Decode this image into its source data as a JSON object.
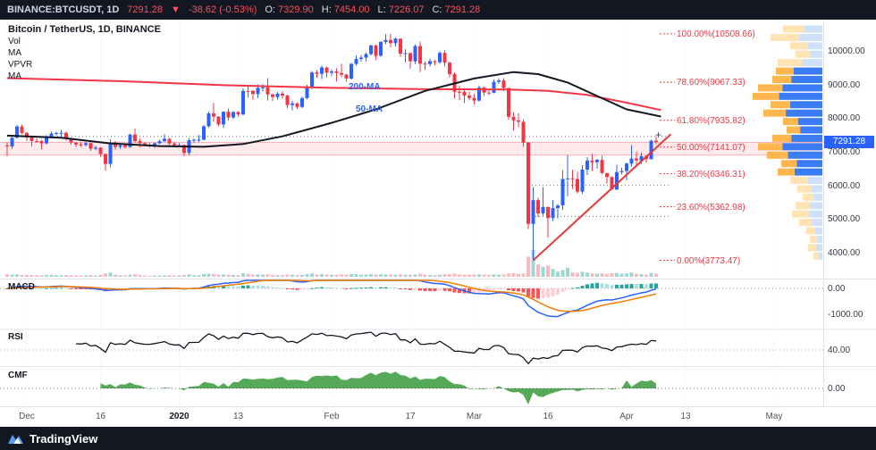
{
  "top_bar": {
    "symbol": "BINANCE:BTCUSDT, 1D",
    "last": "7291.28",
    "direction_icon": "▼",
    "change": "-38.62 (-0.53%)",
    "o_label": "O:",
    "o": "7329.90",
    "h_label": "H:",
    "h": "7454.00",
    "l_label": "L:",
    "l": "7226.07",
    "c_label": "C:",
    "c": "7291.28"
  },
  "legend": {
    "title": "Bitcoin / TetherUS, 1D, BINANCE",
    "items": [
      "Vol",
      "MA",
      "VPVR",
      "MA"
    ]
  },
  "overlays": {
    "ma200_label": "200-MA",
    "ma50_label": "50-MA"
  },
  "panes": {
    "macd": "MACD",
    "rsi": "RSI",
    "cmf": "CMF"
  },
  "price_axis": {
    "labels": [
      "10000.00",
      "9000.00",
      "8000.00",
      "7000.00",
      "6000.00",
      "5000.00",
      "4000.00"
    ],
    "badge": "7291.28"
  },
  "sub_axis": [
    {
      "pane": "macd",
      "label": "0.00"
    },
    {
      "pane": "macd",
      "label": "-1000.00"
    },
    {
      "pane": "rsi",
      "label": "40.00"
    },
    {
      "pane": "cmf",
      "label": "0.00"
    }
  ],
  "time_axis": [
    {
      "label": "Dec",
      "date": "2019-12-01"
    },
    {
      "label": "16",
      "date": "2019-12-16"
    },
    {
      "label": "2020",
      "date": "2020-01-01",
      "year": true
    },
    {
      "label": "13",
      "date": "2020-01-13"
    },
    {
      "label": "Feb",
      "date": "2020-02-01"
    },
    {
      "label": "17",
      "date": "2020-02-17"
    },
    {
      "label": "Mar",
      "date": "2020-03-01"
    },
    {
      "label": "16",
      "date": "2020-03-16"
    },
    {
      "label": "Apr",
      "date": "2020-04-01"
    },
    {
      "label": "13",
      "date": "2020-04-13"
    },
    {
      "label": "May",
      "date": "2020-05-01"
    }
  ],
  "branding": {
    "logo_text": "TradingView"
  },
  "colors": {
    "up": "#2962ff",
    "down": "#f23645",
    "vol_up": "rgba(38,166,154,0.45)",
    "vol_down": "rgba(242,54,69,0.35)",
    "ma200": "#f23645",
    "ma50": "#131722",
    "trend": "#e53935",
    "fib": "#f23645",
    "band_fill": "rgba(242,54,69,0.11)",
    "band_edge": "rgba(242,54,69,0.35)",
    "macd_line": "#2962ff",
    "macd_signal": "#f57c00",
    "hist": [
      "#26A69A",
      "#B2DFDB",
      "#FFCDD2",
      "#FF5252"
    ],
    "rsi": "#131722",
    "cmf_fill": "#43a047",
    "grid": "rgba(42,46,57,0.10)",
    "separator": "#e0e3eb",
    "badge_bg": "#2962ff"
  },
  "chart_data": {
    "type": "candlestick+indicators",
    "symbol": "BINANCE:BTCUSDT",
    "interval": "1D",
    "start": "2019-11-27",
    "ylim": [
      3300,
      10900
    ],
    "ohlcv_format": [
      "open",
      "high",
      "low",
      "close",
      "volume_thousand"
    ],
    "ohlcv": [
      [
        7190,
        7290,
        6870,
        7160,
        45
      ],
      [
        7160,
        7440,
        7090,
        7420,
        38
      ],
      [
        7420,
        7800,
        7390,
        7750,
        42
      ],
      [
        7750,
        7810,
        7520,
        7560,
        35
      ],
      [
        7560,
        7590,
        7320,
        7424,
        32
      ],
      [
        7424,
        7445,
        7156,
        7321,
        32
      ],
      [
        7321,
        7400,
        7271,
        7320,
        28
      ],
      [
        7320,
        7350,
        7077,
        7252,
        30
      ],
      [
        7252,
        7490,
        7220,
        7448,
        35
      ],
      [
        7448,
        7600,
        7400,
        7546,
        38
      ],
      [
        7546,
        7600,
        7480,
        7556,
        30
      ],
      [
        7556,
        7650,
        7430,
        7564,
        28
      ],
      [
        7564,
        7600,
        7330,
        7400,
        30
      ],
      [
        7400,
        7420,
        7210,
        7278,
        26
      ],
      [
        7278,
        7290,
        7150,
        7217,
        24
      ],
      [
        7217,
        7290,
        7151,
        7204,
        22
      ],
      [
        7204,
        7300,
        7160,
        7257,
        24
      ],
      [
        7257,
        7270,
        7030,
        7091,
        30
      ],
      [
        7091,
        7180,
        7050,
        7124,
        22
      ],
      [
        7124,
        7130,
        6850,
        6932,
        35
      ],
      [
        6932,
        6950,
        6435,
        6640,
        60
      ],
      [
        6640,
        7370,
        6535,
        7276,
        75
      ],
      [
        7276,
        7320,
        7060,
        7146,
        40
      ],
      [
        7146,
        7230,
        7080,
        7194,
        28
      ],
      [
        7194,
        7230,
        7100,
        7141,
        26
      ],
      [
        7141,
        7545,
        7120,
        7511,
        38
      ],
      [
        7511,
        7690,
        7270,
        7317,
        45
      ],
      [
        7317,
        7390,
        7130,
        7255,
        30
      ],
      [
        7255,
        7290,
        7160,
        7204,
        22
      ],
      [
        7204,
        7270,
        7130,
        7202,
        18
      ],
      [
        7202,
        7280,
        7120,
        7254,
        20
      ],
      [
        7254,
        7360,
        7230,
        7316,
        22
      ],
      [
        7316,
        7520,
        7290,
        7388,
        26
      ],
      [
        7388,
        7410,
        7200,
        7247,
        28
      ],
      [
        7247,
        7290,
        7140,
        7196,
        24
      ],
      [
        7196,
        7260,
        7160,
        7200,
        25
      ],
      [
        7200,
        7215,
        6870,
        6965,
        35
      ],
      [
        6965,
        7410,
        6890,
        7344,
        45
      ],
      [
        7344,
        7400,
        7270,
        7354,
        28
      ],
      [
        7354,
        7500,
        7290,
        7358,
        30
      ],
      [
        7358,
        7790,
        7340,
        7758,
        48
      ],
      [
        7758,
        8190,
        7720,
        8145,
        55
      ],
      [
        8145,
        8450,
        7900,
        8047,
        50
      ],
      [
        8047,
        8060,
        7760,
        7813,
        38
      ],
      [
        7813,
        8200,
        7710,
        8190,
        42
      ],
      [
        8190,
        8290,
        7930,
        8020,
        36
      ],
      [
        8020,
        8200,
        7970,
        8184,
        34
      ],
      [
        8184,
        8200,
        8050,
        8110,
        30
      ],
      [
        8110,
        8890,
        8090,
        8810,
        65
      ],
      [
        8810,
        8980,
        8610,
        8807,
        52
      ],
      [
        8807,
        8850,
        8550,
        8717,
        40
      ],
      [
        8717,
        9000,
        8600,
        8900,
        45
      ],
      [
        8900,
        9010,
        8800,
        8915,
        38
      ],
      [
        8915,
        9190,
        8520,
        8706,
        48
      ],
      [
        8706,
        8740,
        8510,
        8628,
        36
      ],
      [
        8628,
        8780,
        8550,
        8727,
        32
      ],
      [
        8727,
        8800,
        8580,
        8672,
        30
      ],
      [
        8672,
        8700,
        8290,
        8388,
        42
      ],
      [
        8388,
        8520,
        8230,
        8440,
        35
      ],
      [
        8440,
        8460,
        8270,
        8334,
        28
      ],
      [
        8334,
        8640,
        8300,
        8596,
        34
      ],
      [
        8596,
        8990,
        8560,
        8902,
        48
      ],
      [
        8902,
        9400,
        8870,
        9358,
        60
      ],
      [
        9358,
        9430,
        9200,
        9316,
        42
      ],
      [
        9316,
        9570,
        9160,
        9508,
        50
      ],
      [
        9508,
        9530,
        9210,
        9350,
        44
      ],
      [
        9350,
        9450,
        9250,
        9392,
        38
      ],
      [
        9392,
        9480,
        9090,
        9344,
        35
      ],
      [
        9344,
        9620,
        9220,
        9293,
        40
      ],
      [
        9293,
        9320,
        9080,
        9180,
        36
      ],
      [
        9180,
        9640,
        9150,
        9613,
        50
      ],
      [
        9613,
        9860,
        9570,
        9760,
        45
      ],
      [
        9760,
        9880,
        9680,
        9800,
        38
      ],
      [
        9800,
        9950,
        9690,
        9905,
        40
      ],
      [
        9905,
        10180,
        9860,
        10160,
        48
      ],
      [
        10160,
        10190,
        9730,
        9855,
        44
      ],
      [
        9855,
        10290,
        9830,
        10268,
        46
      ],
      [
        10268,
        10500,
        10200,
        10326,
        42
      ],
      [
        10326,
        10508,
        10110,
        10230,
        40
      ],
      [
        10230,
        10390,
        10130,
        10365,
        38
      ],
      [
        10365,
        10370,
        9830,
        9915,
        45
      ],
      [
        9915,
        10050,
        9660,
        9934,
        36
      ],
      [
        9934,
        9950,
        9466,
        9690,
        40
      ],
      [
        9690,
        10190,
        9610,
        10144,
        42
      ],
      [
        10144,
        10280,
        9370,
        9620,
        55
      ],
      [
        9620,
        9680,
        9430,
        9608,
        38
      ],
      [
        9608,
        9770,
        9540,
        9695,
        32
      ],
      [
        9695,
        9730,
        9570,
        9663,
        30
      ],
      [
        9663,
        9990,
        9620,
        9941,
        36
      ],
      [
        9941,
        10030,
        9540,
        9650,
        44
      ],
      [
        9650,
        9680,
        9210,
        9310,
        48
      ],
      [
        9310,
        9360,
        8590,
        8785,
        58
      ],
      [
        8785,
        8960,
        8540,
        8784,
        42
      ],
      [
        8784,
        8890,
        8450,
        8672,
        40
      ],
      [
        8672,
        8790,
        8530,
        8600,
        38
      ],
      [
        8600,
        8720,
        8410,
        8523,
        40
      ],
      [
        8523,
        8970,
        8490,
        8910,
        45
      ],
      [
        8910,
        8930,
        8660,
        8760,
        38
      ],
      [
        8760,
        8850,
        8680,
        8755,
        36
      ],
      [
        8755,
        9150,
        8740,
        9078,
        42
      ],
      [
        9078,
        9180,
        9020,
        9122,
        38
      ],
      [
        9122,
        9190,
        8810,
        8898,
        44
      ],
      [
        8898,
        8900,
        7950,
        8040,
        60
      ],
      [
        8040,
        8170,
        7630,
        7935,
        70
      ],
      [
        7935,
        8150,
        7730,
        7891,
        54
      ],
      [
        7891,
        7970,
        7150,
        7276,
        58
      ],
      [
        7276,
        7290,
        4700,
        4857,
        360
      ],
      [
        4857,
        5950,
        3773,
        5563,
        480
      ],
      [
        5563,
        5640,
        5060,
        5170,
        220
      ],
      [
        5170,
        5950,
        5100,
        5360,
        180
      ],
      [
        5360,
        5370,
        4450,
        5030,
        200
      ],
      [
        5030,
        5560,
        4940,
        5325,
        140
      ],
      [
        5325,
        5440,
        5020,
        5405,
        90
      ],
      [
        5405,
        6450,
        5270,
        6190,
        120
      ],
      [
        6190,
        6900,
        5680,
        6210,
        160
      ],
      [
        6210,
        6470,
        5900,
        6190,
        80
      ],
      [
        6190,
        6400,
        5760,
        5815,
        70
      ],
      [
        5815,
        6600,
        5750,
        6470,
        90
      ],
      [
        6470,
        6840,
        6310,
        6740,
        75
      ],
      [
        6740,
        6930,
        6440,
        6690,
        60
      ],
      [
        6690,
        6790,
        6500,
        6760,
        55
      ],
      [
        6760,
        6880,
        6330,
        6370,
        58
      ],
      [
        6370,
        6370,
        6050,
        6250,
        50
      ],
      [
        6250,
        6270,
        5870,
        5880,
        65
      ],
      [
        5880,
        6620,
        5860,
        6395,
        70
      ],
      [
        6395,
        6530,
        6330,
        6430,
        55
      ],
      [
        6430,
        6680,
        6150,
        6650,
        60
      ],
      [
        6650,
        7200,
        6560,
        6800,
        75
      ],
      [
        6800,
        7000,
        6610,
        6740,
        55
      ],
      [
        6740,
        6970,
        6640,
        6870,
        48
      ],
      [
        6870,
        6900,
        6680,
        6780,
        40
      ],
      [
        6780,
        7360,
        6770,
        7330,
        70
      ],
      [
        7329.9,
        7454,
        7226.07,
        7291.28,
        55
      ]
    ],
    "fib_levels": [
      {
        "label": "100.00%(10508.66)",
        "price": 10508.66
      },
      {
        "label": "78.60%(9067.33)",
        "price": 9067.33
      },
      {
        "label": "61.80%(7935.82)",
        "price": 7935.82
      },
      {
        "label": "50.00%(7141.07)",
        "price": 7141.07
      },
      {
        "label": "38.20%(6346.31)",
        "price": 6346.31
      },
      {
        "label": "23.60%(5362.98)",
        "price": 5362.98
      },
      {
        "label": "0.00%(3773.47)",
        "price": 3773.47
      }
    ],
    "ma200_points": [
      [
        "2019-11-27",
        9190
      ],
      [
        "2019-12-20",
        9100
      ],
      [
        "2020-01-10",
        8980
      ],
      [
        "2020-02-01",
        8900
      ],
      [
        "2020-02-20",
        8860
      ],
      [
        "2020-03-08",
        8850
      ],
      [
        "2020-03-16",
        8810
      ],
      [
        "2020-03-24",
        8690
      ],
      [
        "2020-04-01",
        8460
      ],
      [
        "2020-04-08",
        8240
      ]
    ],
    "ma50_points": [
      [
        "2019-11-27",
        7480
      ],
      [
        "2019-12-08",
        7420
      ],
      [
        "2019-12-18",
        7250
      ],
      [
        "2019-12-28",
        7170
      ],
      [
        "2020-01-06",
        7150
      ],
      [
        "2020-01-14",
        7230
      ],
      [
        "2020-01-22",
        7460
      ],
      [
        "2020-02-01",
        7860
      ],
      [
        "2020-02-10",
        8260
      ],
      [
        "2020-02-20",
        8810
      ],
      [
        "2020-03-01",
        9180
      ],
      [
        "2020-03-09",
        9370
      ],
      [
        "2020-03-14",
        9310
      ],
      [
        "2020-03-20",
        9060
      ],
      [
        "2020-03-26",
        8660
      ],
      [
        "2020-04-01",
        8260
      ],
      [
        "2020-04-08",
        8050
      ]
    ],
    "trendline": {
      "from": [
        "2020-03-13",
        3773
      ],
      "to": [
        "2020-04-10",
        7520
      ]
    },
    "zone": {
      "top": 7280,
      "bottom": 6900
    },
    "dotted_levels": [
      {
        "price": 7454,
        "from": "2019-11-27",
        "to": "2020-04-10"
      },
      {
        "price": 6000,
        "from": "2020-03-12",
        "to": "2020-04-10"
      },
      {
        "price": 5080,
        "from": "2020-03-12",
        "to": "2020-04-10"
      }
    ],
    "vpvr_rows": [
      [
        10650,
        44,
        0
      ],
      [
        10400,
        58,
        0
      ],
      [
        10150,
        36,
        0
      ],
      [
        9900,
        30,
        0
      ],
      [
        9650,
        50,
        0
      ],
      [
        9400,
        52,
        1
      ],
      [
        9150,
        56,
        1
      ],
      [
        8900,
        72,
        1
      ],
      [
        8650,
        78,
        1
      ],
      [
        8400,
        58,
        1
      ],
      [
        8150,
        66,
        1
      ],
      [
        7900,
        44,
        1
      ],
      [
        7650,
        40,
        1
      ],
      [
        7400,
        56,
        1
      ],
      [
        7150,
        72,
        1
      ],
      [
        6900,
        62,
        1
      ],
      [
        6650,
        46,
        1
      ],
      [
        6400,
        50,
        1
      ],
      [
        6150,
        36,
        0
      ],
      [
        5900,
        28,
        0
      ],
      [
        5650,
        22,
        0
      ],
      [
        5400,
        30,
        0
      ],
      [
        5150,
        34,
        0
      ],
      [
        4900,
        26,
        0
      ],
      [
        4650,
        18,
        0
      ],
      [
        4400,
        14,
        0
      ],
      [
        4150,
        16,
        0
      ],
      [
        3900,
        10,
        0
      ]
    ],
    "indicators": {
      "macd": {
        "fast": 12,
        "slow": 26,
        "signal": 9
      },
      "rsi": {
        "length": 14
      },
      "cmf": {
        "length": 20
      }
    }
  }
}
